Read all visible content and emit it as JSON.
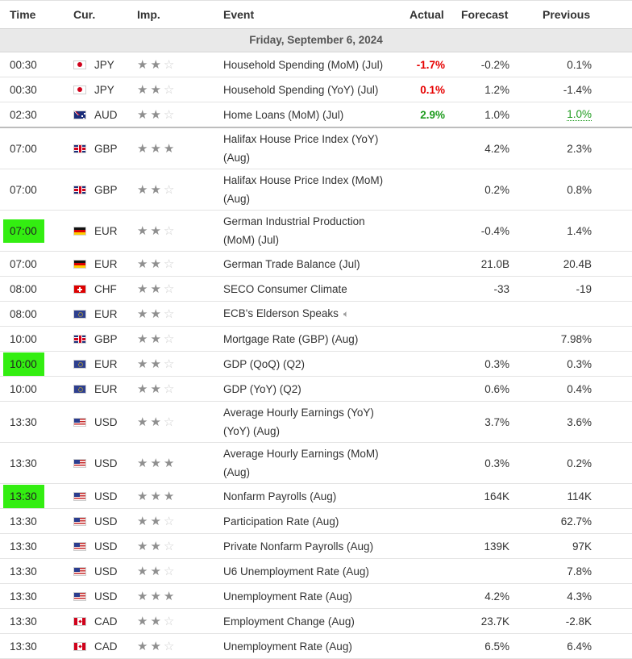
{
  "header": {
    "time": "Time",
    "currency": "Cur.",
    "importance": "Imp.",
    "event": "Event",
    "actual": "Actual",
    "forecast": "Forecast",
    "previous": "Previous"
  },
  "day_label": "Friday, September 6, 2024",
  "colors": {
    "highlight": "#33ee11",
    "negative": "#e60000",
    "positive": "#1d9b1d",
    "star_on": "#8f8f8f",
    "star_off": "#cfcfcf"
  },
  "events": [
    {
      "time": "00:30",
      "currency": "JPY",
      "flag": "japan-flag",
      "stars": 2,
      "event": "Household Spending (MoM) (Jul)",
      "actual": "-1.7%",
      "actual_color": "red",
      "forecast": "-0.2%",
      "previous": "0.1%"
    },
    {
      "time": "00:30",
      "currency": "JPY",
      "flag": "japan-flag",
      "stars": 2,
      "event": "Household Spending (YoY) (Jul)",
      "actual": "0.1%",
      "actual_color": "red",
      "forecast": "1.2%",
      "previous": "-1.4%"
    },
    {
      "time": "02:30",
      "currency": "AUD",
      "flag": "australia-flag",
      "stars": 2,
      "event": "Home Loans (MoM) (Jul)",
      "actual": "2.9%",
      "actual_color": "green",
      "forecast": "1.0%",
      "previous": "1.0%",
      "previous_color": "green",
      "separator": true
    },
    {
      "time": "07:00",
      "currency": "GBP",
      "flag": "uk-flag",
      "stars": 3,
      "event": "Halifax House Price Index (YoY) (Aug)",
      "actual": "",
      "forecast": "4.2%",
      "previous": "2.3%",
      "double": true
    },
    {
      "time": "07:00",
      "currency": "GBP",
      "flag": "uk-flag",
      "stars": 2,
      "event": "Halifax House Price Index (MoM) (Aug)",
      "actual": "",
      "forecast": "0.2%",
      "previous": "0.8%",
      "double": true
    },
    {
      "time": "07:00",
      "currency": "EUR",
      "flag": "germany-flag",
      "stars": 2,
      "event": "German Industrial Production (MoM) (Jul)",
      "actual": "",
      "forecast": "-0.4%",
      "previous": "1.4%",
      "double": true,
      "highlighted": true
    },
    {
      "time": "07:00",
      "currency": "EUR",
      "flag": "germany-flag",
      "stars": 2,
      "event": "German Trade Balance (Jul)",
      "actual": "",
      "forecast": "21.0B",
      "previous": "20.4B"
    },
    {
      "time": "08:00",
      "currency": "CHF",
      "flag": "switzerland-flag",
      "stars": 2,
      "event": "SECO Consumer Climate",
      "actual": "",
      "forecast": "-33",
      "previous": "-19"
    },
    {
      "time": "08:00",
      "currency": "EUR",
      "flag": "eu-flag",
      "stars": 2,
      "event": "ECB's Elderson Speaks",
      "actual": "",
      "forecast": "",
      "previous": "",
      "speaker_icon": true
    },
    {
      "time": "10:00",
      "currency": "GBP",
      "flag": "uk-flag",
      "stars": 2,
      "event": "Mortgage Rate (GBP) (Aug)",
      "actual": "",
      "forecast": "",
      "previous": "7.98%"
    },
    {
      "time": "10:00",
      "currency": "EUR",
      "flag": "eu-flag",
      "stars": 2,
      "event": "GDP (QoQ) (Q2)",
      "actual": "",
      "forecast": "0.3%",
      "previous": "0.3%",
      "highlighted": true
    },
    {
      "time": "10:00",
      "currency": "EUR",
      "flag": "eu-flag",
      "stars": 2,
      "event": "GDP (YoY) (Q2)",
      "actual": "",
      "forecast": "0.6%",
      "previous": "0.4%"
    },
    {
      "time": "13:30",
      "currency": "USD",
      "flag": "us-flag",
      "stars": 2,
      "event": "Average Hourly Earnings (YoY) (YoY) (Aug)",
      "actual": "",
      "forecast": "3.7%",
      "previous": "3.6%",
      "double": true
    },
    {
      "time": "13:30",
      "currency": "USD",
      "flag": "us-flag",
      "stars": 3,
      "event": "Average Hourly Earnings (MoM) (Aug)",
      "actual": "",
      "forecast": "0.3%",
      "previous": "0.2%",
      "double": true
    },
    {
      "time": "13:30",
      "currency": "USD",
      "flag": "us-flag",
      "stars": 3,
      "event": "Nonfarm Payrolls (Aug)",
      "actual": "",
      "forecast": "164K",
      "previous": "114K",
      "highlighted": true
    },
    {
      "time": "13:30",
      "currency": "USD",
      "flag": "us-flag",
      "stars": 2,
      "event": "Participation Rate (Aug)",
      "actual": "",
      "forecast": "",
      "previous": "62.7%"
    },
    {
      "time": "13:30",
      "currency": "USD",
      "flag": "us-flag",
      "stars": 2,
      "event": "Private Nonfarm Payrolls (Aug)",
      "actual": "",
      "forecast": "139K",
      "previous": "97K"
    },
    {
      "time": "13:30",
      "currency": "USD",
      "flag": "us-flag",
      "stars": 2,
      "event": "U6 Unemployment Rate (Aug)",
      "actual": "",
      "forecast": "",
      "previous": "7.8%"
    },
    {
      "time": "13:30",
      "currency": "USD",
      "flag": "us-flag",
      "stars": 3,
      "event": "Unemployment Rate (Aug)",
      "actual": "",
      "forecast": "4.2%",
      "previous": "4.3%"
    },
    {
      "time": "13:30",
      "currency": "CAD",
      "flag": "canada-flag",
      "stars": 2,
      "event": "Employment Change (Aug)",
      "actual": "",
      "forecast": "23.7K",
      "previous": "-2.8K"
    },
    {
      "time": "13:30",
      "currency": "CAD",
      "flag": "canada-flag",
      "stars": 2,
      "event": "Unemployment Rate (Aug)",
      "actual": "",
      "forecast": "6.5%",
      "previous": "6.4%"
    }
  ]
}
